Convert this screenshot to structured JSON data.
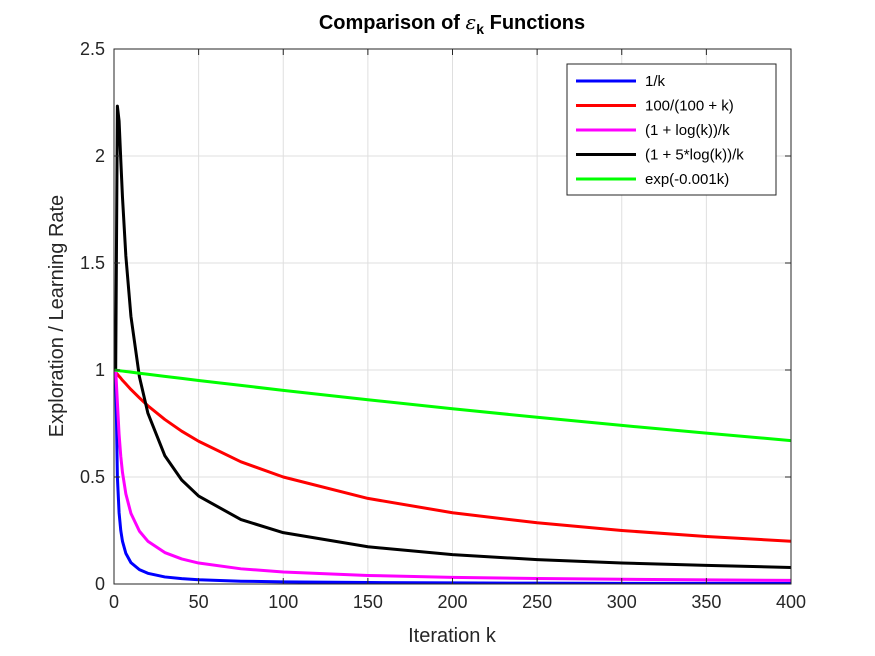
{
  "chart_data": {
    "type": "line",
    "title": {
      "prefix": "Comparison of ",
      "symbol": "ε",
      "subscript": "k",
      "suffix": " Functions"
    },
    "xlabel": "Iteration k",
    "ylabel": "Exploration / Learning Rate",
    "xlim": [
      0,
      400
    ],
    "ylim": [
      0,
      2.5
    ],
    "x_ticks": [
      0,
      50,
      100,
      150,
      200,
      250,
      300,
      350,
      400
    ],
    "x_tick_labels": [
      "0",
      "50",
      "100",
      "150",
      "200",
      "250",
      "300",
      "350",
      "400"
    ],
    "y_ticks": [
      0,
      0.5,
      1,
      1.5,
      2,
      2.5
    ],
    "y_tick_labels": [
      "0",
      "0.5",
      "1",
      "1.5",
      "2",
      "2.5"
    ],
    "grid": true,
    "legend_position": "top-right",
    "x": [
      1,
      2,
      3,
      4,
      5,
      7,
      10,
      15,
      20,
      30,
      40,
      50,
      75,
      100,
      150,
      200,
      250,
      300,
      350,
      400
    ],
    "series": [
      {
        "name": "1/k",
        "color": "#0000ff",
        "values": [
          1.0,
          0.5,
          0.333,
          0.25,
          0.2,
          0.143,
          0.1,
          0.067,
          0.05,
          0.033,
          0.025,
          0.02,
          0.013,
          0.01,
          0.007,
          0.005,
          0.004,
          0.003,
          0.003,
          0.003
        ]
      },
      {
        "name": "100/(100 + k)",
        "color": "#ff0000",
        "values": [
          0.99,
          0.98,
          0.971,
          0.962,
          0.952,
          0.935,
          0.909,
          0.87,
          0.833,
          0.769,
          0.714,
          0.667,
          0.571,
          0.5,
          0.4,
          0.333,
          0.286,
          0.25,
          0.222,
          0.2
        ]
      },
      {
        "name": "(1 + log(k))/k",
        "color": "#ff00ff",
        "values": [
          1.0,
          0.847,
          0.699,
          0.597,
          0.522,
          0.421,
          0.33,
          0.247,
          0.2,
          0.147,
          0.117,
          0.098,
          0.071,
          0.056,
          0.04,
          0.031,
          0.026,
          0.022,
          0.019,
          0.017
        ]
      },
      {
        "name": "(1 + 5*log(k))/k",
        "color": "#000000",
        "values": [
          1.0,
          2.233,
          2.164,
          1.983,
          1.809,
          1.533,
          1.251,
          0.969,
          0.799,
          0.6,
          0.486,
          0.411,
          0.301,
          0.24,
          0.174,
          0.137,
          0.114,
          0.098,
          0.087,
          0.077
        ]
      },
      {
        "name": "exp(-0.001k)",
        "color": "#00ff00",
        "values": [
          0.999,
          0.998,
          0.997,
          0.996,
          0.995,
          0.993,
          0.99,
          0.985,
          0.98,
          0.97,
          0.961,
          0.951,
          0.928,
          0.905,
          0.861,
          0.819,
          0.779,
          0.741,
          0.705,
          0.67
        ]
      }
    ]
  }
}
